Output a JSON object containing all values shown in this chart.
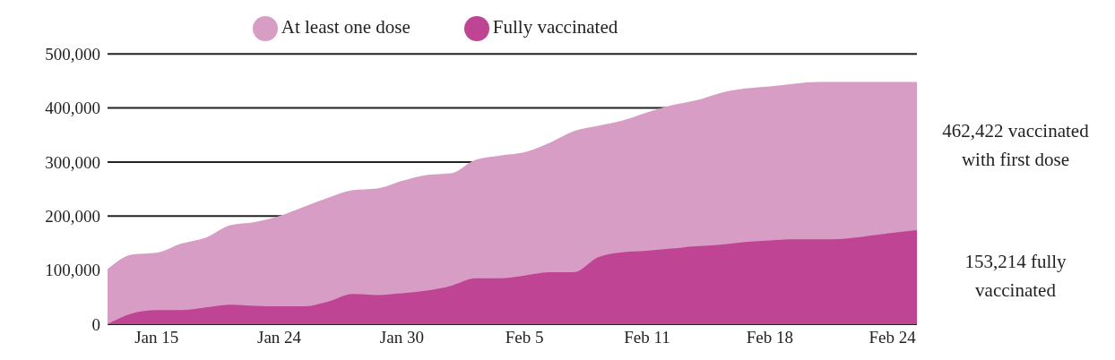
{
  "chart_data": {
    "type": "area",
    "categories": [
      null,
      null,
      "Jan 15",
      null,
      null,
      null,
      null,
      "Jan 24",
      null,
      null,
      null,
      null,
      "Jan 30",
      null,
      null,
      null,
      null,
      "Feb 5",
      null,
      null,
      null,
      null,
      "Feb 11",
      null,
      null,
      null,
      null,
      "Feb 18",
      null,
      null,
      null,
      null,
      "Feb 24",
      null
    ],
    "series": [
      {
        "name": "At least one dose",
        "color": "#d79dc5",
        "values": [
          102000,
          129000,
          132000,
          149000,
          160000,
          183000,
          189000,
          200000,
          217000,
          234000,
          248000,
          251000,
          265000,
          276000,
          279000,
          304000,
          312000,
          318000,
          335000,
          357000,
          367000,
          377000,
          392000,
          405000,
          414000,
          428000,
          436000,
          440000,
          445000,
          448000,
          448000,
          448000,
          448000,
          448000
        ]
      },
      {
        "name": "Fully vaccinated",
        "color": "#c04494",
        "values": [
          0,
          20000,
          26000,
          26000,
          31000,
          36000,
          34000,
          33000,
          33000,
          42000,
          56000,
          54000,
          57000,
          62000,
          71000,
          85000,
          85000,
          90000,
          96000,
          96000,
          124000,
          133000,
          136000,
          140000,
          144000,
          147000,
          152000,
          155000,
          157000,
          157000,
          158000,
          163000,
          169000,
          174000
        ]
      }
    ],
    "ylim": [
      0,
      500000
    ],
    "yticks": [
      0,
      {
        "value": 100000,
        "label": "100,000"
      },
      {
        "value": 200000,
        "label": "200,000"
      },
      {
        "value": 300000,
        "label": "300,000"
      },
      {
        "value": 400000,
        "label": "400,000"
      },
      {
        "value": 500000,
        "label": "500,000"
      }
    ],
    "grid": "y",
    "legend": "top",
    "annotations": [
      "462,422 vaccinated with first dose",
      "153,214 fully vaccinated"
    ]
  }
}
